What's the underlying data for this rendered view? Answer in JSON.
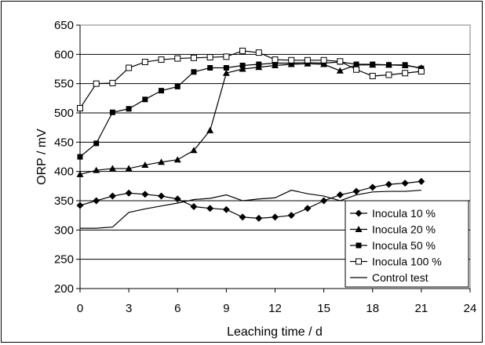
{
  "chart_data": {
    "type": "line",
    "xlabel": "Leaching time / d",
    "ylabel": "ORP / mV",
    "xlim": [
      0,
      24
    ],
    "ylim": [
      200,
      650
    ],
    "xticks": [
      "0",
      "3",
      "6",
      "9",
      "12",
      "15",
      "18",
      "21",
      "24"
    ],
    "yticks": [
      "200",
      "250",
      "300",
      "350",
      "400",
      "450",
      "500",
      "550",
      "600",
      "650"
    ],
    "grid": "horizontal",
    "legend_position": "bottom-right",
    "series": [
      {
        "name": "Inocula 10 %",
        "marker": "diamond-filled",
        "x": [
          0,
          1,
          2,
          3,
          4,
          5,
          6,
          7,
          8,
          9,
          10,
          11,
          12,
          13,
          14,
          15,
          16,
          17,
          18,
          19,
          20,
          21
        ],
        "y": [
          342,
          350,
          358,
          363,
          361,
          358,
          353,
          340,
          337,
          335,
          322,
          320,
          322,
          325,
          337,
          350,
          360,
          366,
          373,
          378,
          380,
          383
        ]
      },
      {
        "name": "Inocula 20 %",
        "marker": "triangle-filled",
        "x": [
          0,
          1,
          2,
          3,
          4,
          5,
          6,
          7,
          8,
          9,
          10,
          11,
          12,
          13,
          14,
          15,
          16,
          17,
          18,
          19,
          20,
          21
        ],
        "y": [
          395,
          402,
          405,
          405,
          411,
          416,
          420,
          436,
          470,
          568,
          575,
          578,
          581,
          583,
          584,
          583,
          572,
          582,
          582,
          582,
          581,
          577
        ]
      },
      {
        "name": "Inocula 50 %",
        "marker": "square-filled",
        "x": [
          0,
          1,
          2,
          3,
          4,
          5,
          6,
          7,
          8,
          9,
          10,
          11,
          12,
          13,
          14,
          15,
          16,
          17,
          18,
          19,
          20,
          21
        ],
        "y": [
          425,
          448,
          501,
          507,
          523,
          538,
          545,
          570,
          577,
          577,
          581,
          583,
          585,
          585,
          586,
          585,
          587,
          583,
          583,
          582,
          582,
          576
        ]
      },
      {
        "name": "Inocula 100 %",
        "marker": "square-open",
        "x": [
          0,
          1,
          2,
          3,
          4,
          5,
          6,
          7,
          8,
          9,
          10,
          11,
          12,
          13,
          14,
          15,
          16,
          17,
          18,
          19,
          20,
          21
        ],
        "y": [
          508,
          550,
          551,
          577,
          587,
          591,
          593,
          594,
          595,
          596,
          606,
          603,
          591,
          590,
          590,
          590,
          588,
          574,
          563,
          565,
          568,
          571
        ]
      },
      {
        "name": "Control test",
        "marker": "none",
        "x": [
          0,
          1,
          2,
          3,
          4,
          5,
          6,
          7,
          8,
          9,
          10,
          11,
          12,
          13,
          14,
          15,
          16,
          17,
          18,
          19,
          20,
          21
        ],
        "y": [
          303,
          303,
          305,
          330,
          336,
          341,
          346,
          352,
          354,
          360,
          350,
          353,
          355,
          368,
          362,
          358,
          350,
          360,
          365,
          366,
          366,
          368
        ]
      }
    ]
  }
}
